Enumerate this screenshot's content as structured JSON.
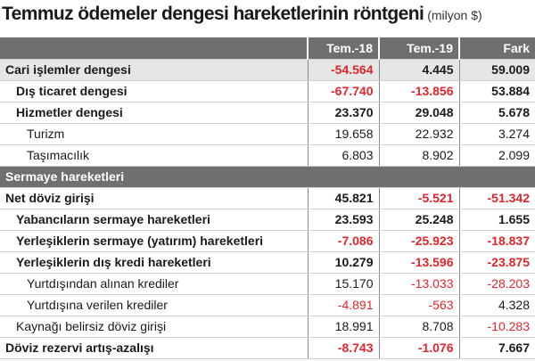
{
  "header": {
    "title": "Temmuz ödemeler dengesi hareketlerinin röntgeni",
    "subtitle": "(milyon $)"
  },
  "table": {
    "columns": [
      "Tem.-18",
      "Tem.-19",
      "Fark"
    ],
    "rows": [
      {
        "label": "Cari işlemler dengesi",
        "values": [
          "-54.564",
          "4.445",
          "59.009"
        ],
        "bold": true,
        "indent": 0,
        "highlight": true
      },
      {
        "label": "Dış ticaret dengesi",
        "values": [
          "-67.740",
          "-13.856",
          "53.884"
        ],
        "bold": true,
        "indent": 1
      },
      {
        "label": "Hizmetler dengesi",
        "values": [
          "23.370",
          "29.048",
          "5.678"
        ],
        "bold": true,
        "indent": 1
      },
      {
        "label": "Turizm",
        "values": [
          "19.658",
          "22.932",
          "3.274"
        ],
        "bold": false,
        "indent": 2
      },
      {
        "label": "Taşımacılık",
        "values": [
          "6.803",
          "8.902",
          "2.099"
        ],
        "bold": false,
        "indent": 2
      },
      {
        "section": "Sermaye hareketleri"
      },
      {
        "label": "Net döviz girişi",
        "values": [
          "45.821",
          "-5.521",
          "-51.342"
        ],
        "bold": true,
        "indent": 0
      },
      {
        "label": "Yabancıların sermaye hareketleri",
        "values": [
          "23.593",
          "25.248",
          "1.655"
        ],
        "bold": true,
        "indent": 1
      },
      {
        "label": "Yerleşiklerin sermaye (yatırım) hareketleri",
        "values": [
          "-7.086",
          "-25.923",
          "-18.837"
        ],
        "bold": true,
        "indent": 1
      },
      {
        "label": "Yerleşiklerin dış kredi hareketleri",
        "values": [
          "10.279",
          "-13.596",
          "-23.875"
        ],
        "bold": true,
        "indent": 1
      },
      {
        "label": "Yurtdışından alınan krediler",
        "values": [
          "15.170",
          "-13.033",
          "-28.203"
        ],
        "bold": false,
        "indent": 2
      },
      {
        "label": "Yurtdışına verilen krediler",
        "values": [
          "-4.891",
          "-563",
          "4.328"
        ],
        "bold": false,
        "indent": 2
      },
      {
        "label": "Kaynağı belirsiz döviz girişi",
        "values": [
          "18.991",
          "8.708",
          "-10.283"
        ],
        "bold": false,
        "indent": 1
      },
      {
        "label": "Döviz rezervi artış-azalışı",
        "values": [
          "-8.743",
          "-1.076",
          "7.667"
        ],
        "bold": true,
        "indent": 0
      }
    ]
  }
}
